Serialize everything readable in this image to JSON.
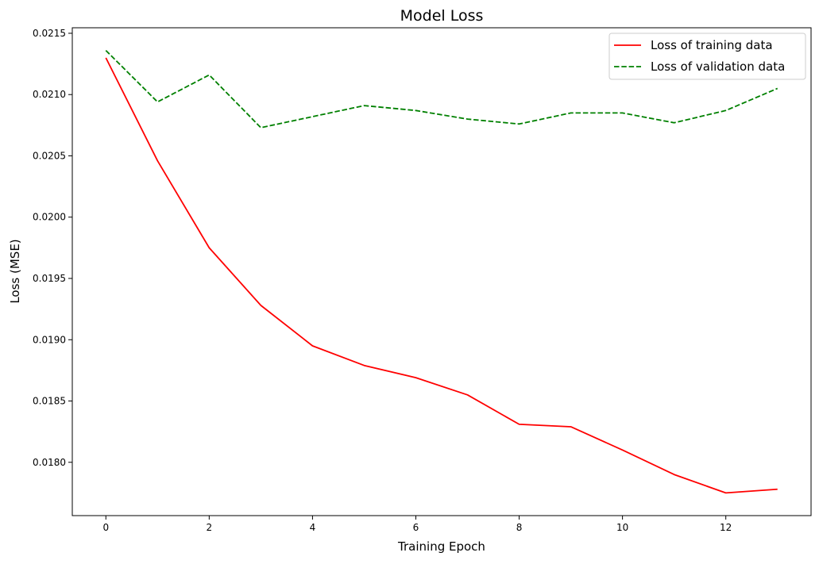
{
  "chart_data": {
    "type": "line",
    "title": "Model Loss",
    "xlabel": "Training Epoch",
    "ylabel": "Loss (MSE)",
    "xlim": [
      -0.65,
      13.65
    ],
    "ylim": [
      0.017565,
      0.021545
    ],
    "xticks": [
      0,
      2,
      4,
      6,
      8,
      10,
      12
    ],
    "xtick_labels": [
      "0",
      "2",
      "4",
      "6",
      "8",
      "10",
      "12"
    ],
    "yticks": [
      0.018,
      0.0185,
      0.019,
      0.0195,
      0.02,
      0.0205,
      0.021,
      0.0215
    ],
    "ytick_labels": [
      "0.0180",
      "0.0185",
      "0.0190",
      "0.0195",
      "0.0200",
      "0.0205",
      "0.0210",
      "0.0215"
    ],
    "grid": false,
    "legend_position": "top-right",
    "x": [
      0,
      1,
      2,
      3,
      4,
      5,
      6,
      7,
      8,
      9,
      10,
      11,
      12,
      13
    ],
    "series": [
      {
        "name": "Loss of training data",
        "color": "#ff0000",
        "style": "solid",
        "values": [
          0.0213,
          0.02046,
          0.01975,
          0.01928,
          0.01895,
          0.01879,
          0.01869,
          0.01855,
          0.01831,
          0.01829,
          0.0181,
          0.0179,
          0.01775,
          0.01778
        ]
      },
      {
        "name": "Loss of validation data",
        "color": "#008000",
        "style": "dashed",
        "values": [
          0.02136,
          0.02094,
          0.02116,
          0.02073,
          0.02082,
          0.02091,
          0.02087,
          0.0208,
          0.02076,
          0.02085,
          0.02085,
          0.02077,
          0.02087,
          0.02105
        ]
      }
    ]
  }
}
